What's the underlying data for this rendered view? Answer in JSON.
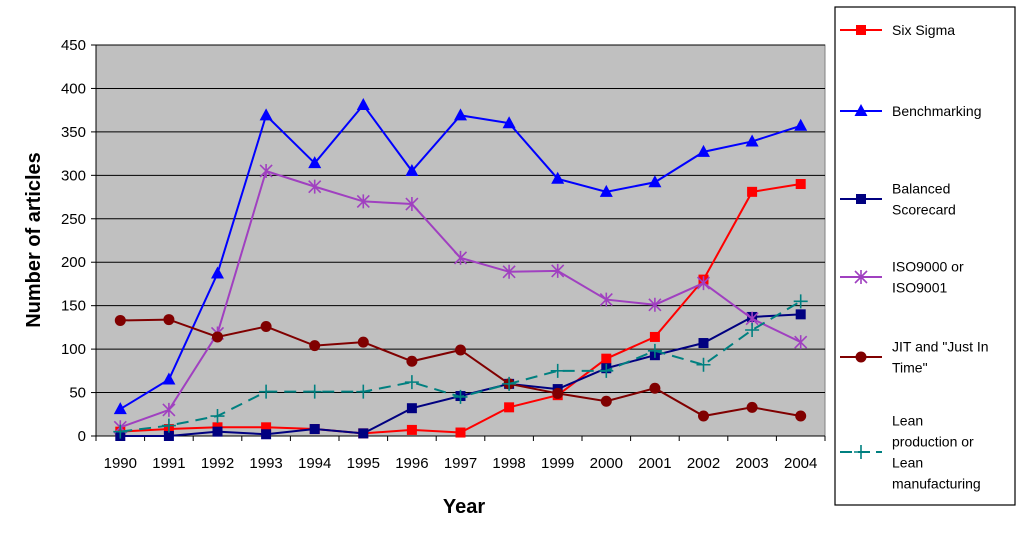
{
  "chart_data": {
    "type": "line",
    "title": "",
    "xlabel": "Year",
    "ylabel": "Number of articles",
    "ylim": [
      0,
      450
    ],
    "yticks": [
      0,
      50,
      100,
      150,
      200,
      250,
      300,
      350,
      400,
      450
    ],
    "grid": true,
    "legend_position": "right",
    "plot_background": "#c0c0c0",
    "categories": [
      "1990",
      "1991",
      "1992",
      "1993",
      "1994",
      "1995",
      "1996",
      "1997",
      "1998",
      "1999",
      "2000",
      "2001",
      "2002",
      "2003",
      "2004"
    ],
    "series": [
      {
        "name": "Six Sigma",
        "legend_lines": [
          "Six Sigma"
        ],
        "color": "#ff0000",
        "marker": "square",
        "dash": false,
        "values": [
          5,
          8,
          10,
          10,
          8,
          3,
          7,
          4,
          33,
          47,
          89,
          114,
          180,
          281,
          290
        ]
      },
      {
        "name": "Benchmarking",
        "legend_lines": [
          "Benchmarking"
        ],
        "color": "#0000ff",
        "marker": "triangle",
        "dash": false,
        "values": [
          31,
          65,
          187,
          369,
          314,
          381,
          305,
          369,
          360,
          296,
          281,
          292,
          327,
          339,
          357
        ]
      },
      {
        "name": "Balanced Scorecard",
        "legend_lines": [
          "Balanced",
          "Scorecard"
        ],
        "color": "#000080",
        "marker": "square",
        "dash": false,
        "values": [
          0,
          0,
          5,
          2,
          8,
          3,
          32,
          46,
          60,
          54,
          78,
          93,
          107,
          137,
          140
        ]
      },
      {
        "name": "ISO9000 or ISO9001",
        "legend_lines": [
          "ISO9000 or",
          "ISO9001"
        ],
        "color": "#a040c0",
        "marker": "star",
        "dash": false,
        "values": [
          10,
          30,
          118,
          305,
          287,
          270,
          267,
          205,
          189,
          190,
          157,
          151,
          176,
          135,
          108
        ]
      },
      {
        "name": "JIT and \"Just In Time\"",
        "legend_lines": [
          "JIT and \"Just In",
          "Time\""
        ],
        "color": "#800000",
        "marker": "circle",
        "dash": false,
        "values": [
          133,
          134,
          114,
          126,
          104,
          108,
          86,
          99,
          60,
          49,
          40,
          55,
          23,
          33,
          23
        ]
      },
      {
        "name": "Lean production or Lean manufacturing",
        "legend_lines": [
          "Lean",
          "production or",
          "Lean",
          "manufacturing"
        ],
        "color": "#008080",
        "marker": "plus",
        "dash": true,
        "values": [
          5,
          12,
          23,
          51,
          51,
          51,
          62,
          45,
          60,
          75,
          75,
          98,
          82,
          122,
          155
        ]
      }
    ]
  }
}
